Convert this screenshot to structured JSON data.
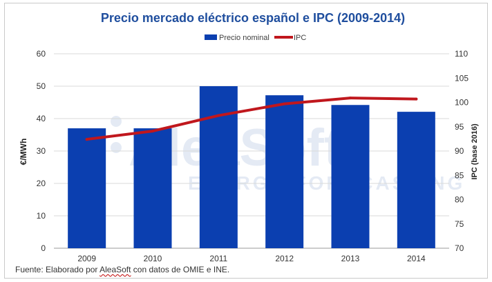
{
  "chart_data": {
    "type": "bar",
    "title": "Precio mercado eléctrico español e IPC (2009-2014)",
    "categories": [
      "2009",
      "2010",
      "2011",
      "2012",
      "2013",
      "2014"
    ],
    "series": [
      {
        "name": "Precio nominal",
        "kind": "bar",
        "axis": "left",
        "color": "#0b3fb0",
        "values": [
          37,
          37,
          50,
          47.2,
          44.2,
          42.1
        ]
      },
      {
        "name": "IPC",
        "kind": "line",
        "axis": "right",
        "color": "#c0171d",
        "values": [
          92.4,
          94.1,
          97.3,
          99.7,
          100.9,
          100.7
        ]
      }
    ],
    "ylabel": "€/MWh",
    "ylabel_right": "IPC (base 2016)",
    "ylim": [
      0,
      60
    ],
    "ylim_right": [
      70,
      110
    ],
    "yticks": [
      "0",
      "10",
      "20",
      "30",
      "40",
      "50",
      "60"
    ],
    "yticks_right": [
      "70",
      "75",
      "80",
      "85",
      "90",
      "95",
      "100",
      "105",
      "110"
    ],
    "grid": true,
    "legend": "top-center"
  },
  "watermark": {
    "line1": "AleaSoft",
    "line2": "ENERGY FORECASTING"
  },
  "source": {
    "prefix": "Fuente: Elaborado por ",
    "brand": "AleaSoft",
    "suffix": " con datos de OMIE e INE."
  }
}
